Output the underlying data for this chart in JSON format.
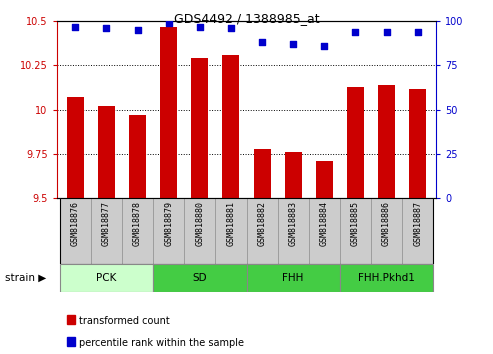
{
  "title": "GDS4492 / 1388985_at",
  "samples": [
    "GSM818876",
    "GSM818877",
    "GSM818878",
    "GSM818879",
    "GSM818880",
    "GSM818881",
    "GSM818882",
    "GSM818883",
    "GSM818884",
    "GSM818885",
    "GSM818886",
    "GSM818887"
  ],
  "bar_values": [
    10.07,
    10.02,
    9.97,
    10.47,
    10.29,
    10.31,
    9.78,
    9.76,
    9.71,
    10.13,
    10.14,
    10.12
  ],
  "percentile_values": [
    97,
    96,
    95,
    99,
    97,
    96,
    88,
    87,
    86,
    94,
    94,
    94
  ],
  "bar_color": "#cc0000",
  "dot_color": "#0000cc",
  "ylim_left": [
    9.5,
    10.5
  ],
  "ylim_right": [
    0,
    100
  ],
  "yticks_left": [
    9.5,
    9.75,
    10.0,
    10.25,
    10.5
  ],
  "yticks_right": [
    0,
    25,
    50,
    75,
    100
  ],
  "group_data": [
    {
      "label": "PCK",
      "start": 0,
      "end": 3,
      "color": "#ccffcc"
    },
    {
      "label": "SD",
      "start": 3,
      "end": 6,
      "color": "#44cc44"
    },
    {
      "label": "FHH",
      "start": 6,
      "end": 9,
      "color": "#44cc44"
    },
    {
      "label": "FHH.Pkhd1",
      "start": 9,
      "end": 12,
      "color": "#44cc44"
    }
  ],
  "xlabel_strain": "strain",
  "legend_red": "transformed count",
  "legend_blue": "percentile rank within the sample",
  "axis_color_left": "#cc0000",
  "axis_color_right": "#0000cc",
  "tick_label_bg": "#cccccc",
  "tick_label_border": "#999999"
}
